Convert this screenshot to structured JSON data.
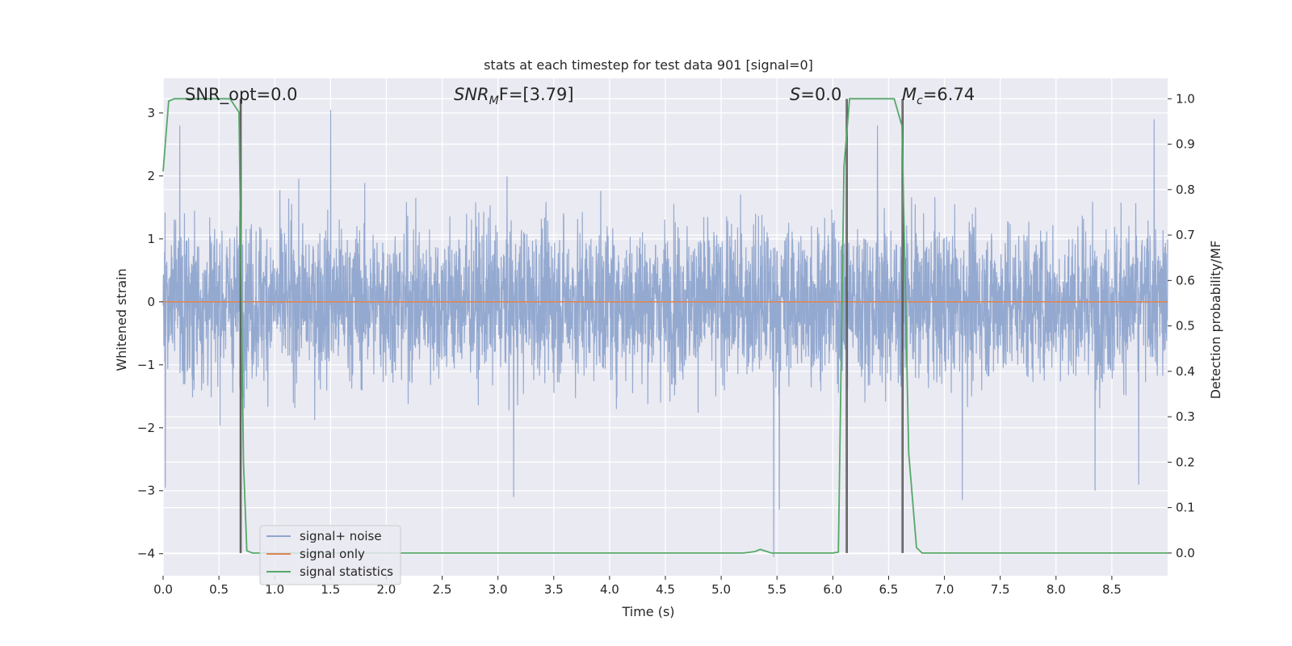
{
  "chart_data": {
    "type": "line",
    "title": "stats at each timestep for test data 901 [signal=0]",
    "xlabel": "Time (s)",
    "ylabel": "Whitened strain",
    "ylabel_right": "Detection probability/MF",
    "xlim": [
      0.0,
      9.0
    ],
    "ylim": [
      -4.35,
      3.55
    ],
    "ylim_right": [
      -0.05,
      1.045
    ],
    "x_ticks": [
      0.0,
      0.5,
      1.0,
      1.5,
      2.0,
      2.5,
      3.0,
      3.5,
      4.0,
      4.5,
      5.0,
      5.5,
      6.0,
      6.5,
      7.0,
      7.5,
      8.0,
      8.5
    ],
    "x_tick_labels": [
      "0.0",
      "0.5",
      "1.0",
      "1.5",
      "2.0",
      "2.5",
      "3.0",
      "3.5",
      "4.0",
      "4.5",
      "5.0",
      "5.5",
      "6.0",
      "6.5",
      "7.0",
      "7.5",
      "8.0",
      "8.5"
    ],
    "y_ticks": [
      3,
      2,
      1,
      0,
      -1,
      -2,
      -3,
      -4
    ],
    "y_tick_labels": [
      "3",
      "2",
      "1",
      "0",
      "−1",
      "−2",
      "−3",
      "−4"
    ],
    "y_ticks_right": [
      1.0,
      0.9,
      0.8,
      0.7,
      0.6,
      0.5,
      0.4,
      0.3,
      0.2,
      0.1,
      0.0
    ],
    "y_tick_labels_right": [
      "1.0",
      "0.9",
      "0.8",
      "0.7",
      "0.6",
      "0.5",
      "0.4",
      "0.3",
      "0.2",
      "0.1",
      "0.0"
    ],
    "grid": true,
    "legend_placement": "lower-left",
    "annotations": {
      "snr_opt": "SNR_opt=0.0",
      "snr_mf_main": "SNR",
      "snr_mf_sub": "M",
      "snr_mf_rest": "F=[3.79]",
      "s_main": "S",
      "s_rest": "=0.0",
      "mc_main": "M",
      "mc_sub": "c",
      "mc_rest": "=6.74"
    },
    "vertical_lines_x": [
      0.69,
      0.7,
      6.12,
      6.13,
      6.62,
      6.63
    ],
    "series": [
      {
        "name": "signal+ noise",
        "color": "#8fa5cd",
        "axis": "left",
        "description_of_shape": "dense gaussian-like noise, sample count approx 4096 over 9 s",
        "typical_envelope": [
          -1.9,
          2.0
        ],
        "notable_spikes": [
          {
            "x": 0.02,
            "y": -2.95
          },
          {
            "x": 0.15,
            "y": 2.8
          },
          {
            "x": 1.5,
            "y": 3.05
          },
          {
            "x": 3.14,
            "y": -3.1
          },
          {
            "x": 5.47,
            "y": -4.05
          },
          {
            "x": 5.52,
            "y": -3.3
          },
          {
            "x": 6.4,
            "y": 2.8
          },
          {
            "x": 7.16,
            "y": -3.15
          },
          {
            "x": 8.88,
            "y": 2.9
          },
          {
            "x": 8.74,
            "y": -2.9
          },
          {
            "x": 8.35,
            "y": -3.0
          }
        ]
      },
      {
        "name": "signal only",
        "color": "#dd8452",
        "axis": "left",
        "x": [
          0.0,
          9.0
        ],
        "y": [
          0.0,
          0.0
        ]
      },
      {
        "name": "signal statistics",
        "color": "#55a868",
        "axis": "right",
        "x": [
          0.0,
          0.05,
          0.1,
          0.3,
          0.6,
          0.68,
          0.72,
          0.75,
          0.8,
          0.85,
          5.2,
          5.3,
          5.35,
          5.45,
          5.5,
          6.0,
          6.05,
          6.1,
          6.15,
          6.2,
          6.5,
          6.55,
          6.62,
          6.68,
          6.75,
          6.8,
          9.0
        ],
        "y": [
          0.84,
          0.995,
          1.0,
          1.0,
          1.0,
          0.97,
          0.2,
          0.005,
          0.0,
          0.0,
          0.0,
          0.003,
          0.008,
          0.0,
          0.0,
          0.0,
          0.002,
          0.85,
          1.0,
          1.0,
          1.0,
          1.0,
          0.94,
          0.22,
          0.012,
          0.0,
          0.0
        ]
      }
    ]
  }
}
